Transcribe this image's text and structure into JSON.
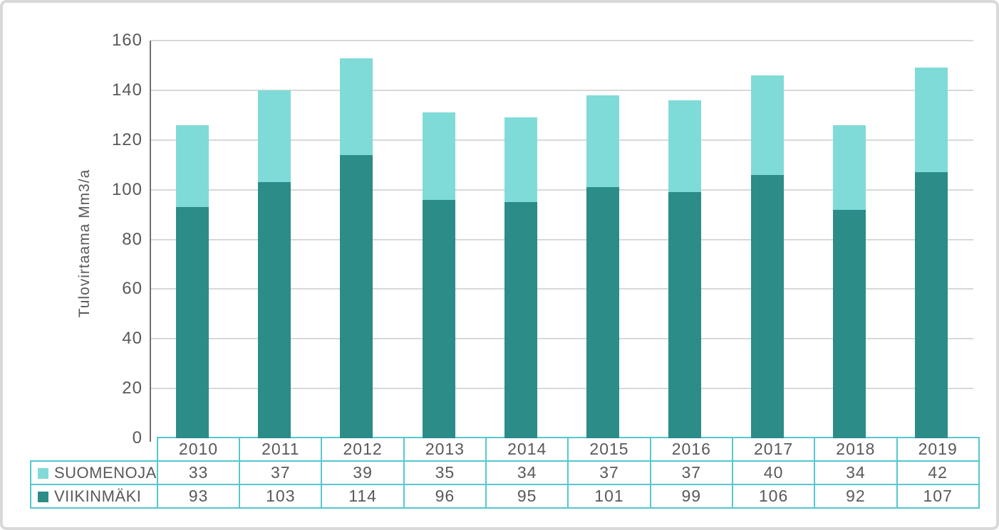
{
  "chart_data": {
    "type": "bar",
    "stacked": true,
    "title": "",
    "xlabel": "",
    "ylabel": "Tulovirtaama Mm3/a",
    "categories": [
      "2010",
      "2011",
      "2012",
      "2013",
      "2014",
      "2015",
      "2016",
      "2017",
      "2018",
      "2019"
    ],
    "series": [
      {
        "name": "SUOMENOJA",
        "color": "#7FDBD7",
        "stack_position": "top",
        "values": [
          33,
          37,
          39,
          35,
          34,
          37,
          37,
          40,
          34,
          42
        ]
      },
      {
        "name": "VIIKINMÄKI",
        "color": "#2B8C88",
        "stack_position": "bottom",
        "values": [
          93,
          103,
          114,
          96,
          95,
          101,
          99,
          106,
          92,
          107
        ]
      }
    ],
    "ylim": [
      0,
      160
    ],
    "yticks": [
      0,
      20,
      40,
      60,
      80,
      100,
      120,
      140,
      160
    ],
    "grid": true,
    "legend_position": "data-table-left"
  },
  "colors": {
    "suomenoja": "#7FDBD7",
    "viikinmaki": "#2B8C88",
    "gridline": "#D8D8D8",
    "axis_line": "#707070",
    "text": "#595959",
    "table_border": "#55C7D0",
    "card_border": "#D9D9D9",
    "background": "#FFFFFF"
  }
}
